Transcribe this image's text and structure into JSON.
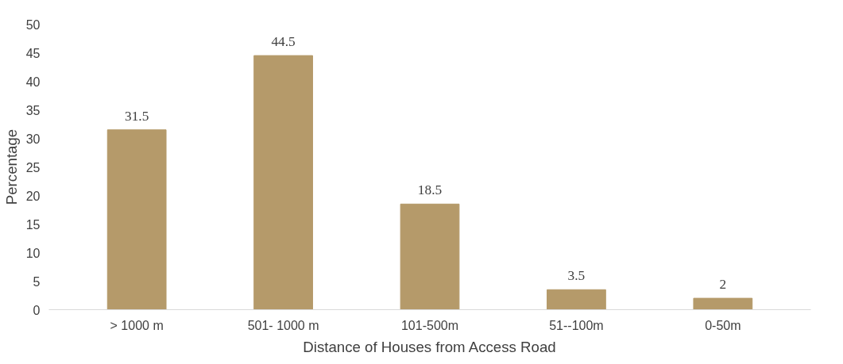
{
  "chart_data": {
    "type": "bar",
    "xlabel": "Distance of Houses from Access Road",
    "ylabel": "Percentage",
    "categories": [
      "> 1000 m",
      "501- 1000 m",
      "101-500m",
      "51--100m",
      "0-50m"
    ],
    "values": [
      31.5,
      44.5,
      18.5,
      3.5,
      2
    ],
    "color": "#b59a6a",
    "ylim": [
      0,
      50
    ],
    "yticks": [
      0,
      5,
      10,
      15,
      20,
      25,
      30,
      35,
      40,
      45,
      50
    ],
    "grid": false,
    "data_labels": true
  }
}
